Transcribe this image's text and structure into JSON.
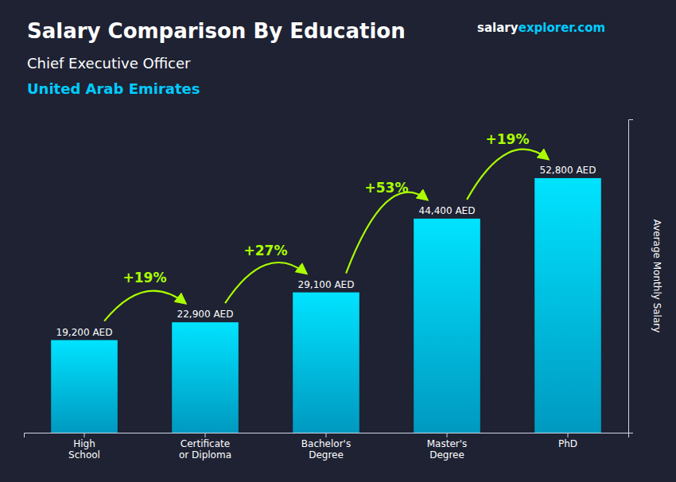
{
  "chart_data": {
    "type": "bar",
    "title": "Salary Comparison By Education",
    "subtitle": [
      "Chief Executive Officer",
      "United Arab Emirates"
    ],
    "source": [
      "salary",
      "explorer.com"
    ],
    "ylabel": "Average Monthly Salary",
    "categories": [
      "High\nSchool",
      "Certificate\nor Diploma",
      "Bachelor's\nDegree",
      "Master's\nDegree",
      "PhD"
    ],
    "values": [
      19200,
      22900,
      29100,
      44400,
      52800
    ],
    "value_labels": [
      "19,200 AED",
      "22,900 AED",
      "29,100 AED",
      "44,400 AED",
      "52,800 AED"
    ],
    "data_labels": true,
    "color": "#00ccff",
    "annotations": [
      {
        "text": "+19%",
        "color": "#aaff00"
      },
      {
        "text": "+27%",
        "color": "#aaff00"
      },
      {
        "text": "+53%",
        "color": "#aaff00"
      },
      {
        "text": "+19%",
        "color": "#aaff00"
      }
    ],
    "ylim": [
      0,
      65000
    ],
    "yticks": [],
    "tick_labels": "x",
    "grid": false
  }
}
